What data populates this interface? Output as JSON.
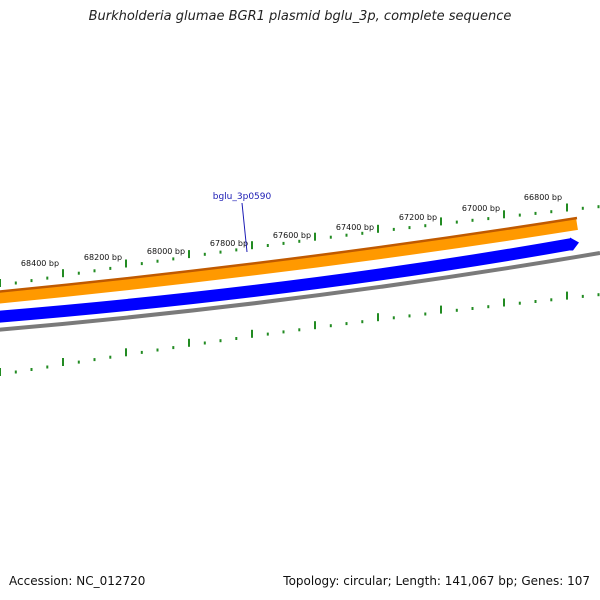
{
  "title": "Burkholderia glumae BGR1 plasmid bglu_3p, complete sequence",
  "gene_label": "bglu_3p0590",
  "ticks": [
    "68400 bp",
    "68200 bp",
    "68000 bp",
    "67800 bp",
    "67600 bp",
    "67400 bp",
    "67200 bp",
    "67000 bp",
    "66800 bp"
  ],
  "footer": {
    "accession": "Accession: NC_012720",
    "summary": "Topology: circular; Length: 141,067 bp; Genes: 107"
  },
  "colors": {
    "orange_track": "#ff9900",
    "orange_edge": "#c05a00",
    "blue_track": "#0000ff",
    "backbone": "#7a7a7a",
    "tick_green": "#228b22",
    "gene_label": "#1a1ab4"
  }
}
